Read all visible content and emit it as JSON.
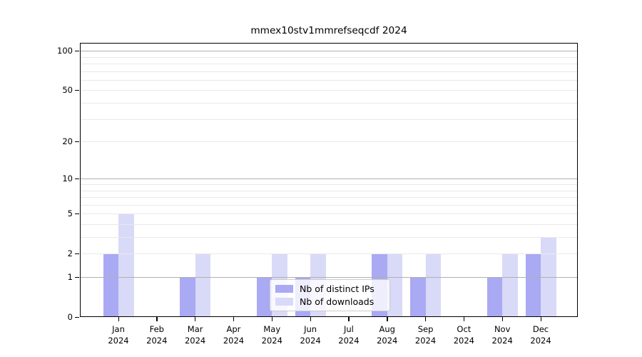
{
  "chart_data": {
    "type": "bar",
    "title": "mmex10stv1mmrefseqcdf 2024",
    "xlabel": "",
    "ylabel": "",
    "scale": "log10(1+y)",
    "grid": "on",
    "legend_position": "lower center",
    "year": "2024",
    "categories": [
      "Jan",
      "Feb",
      "Mar",
      "Apr",
      "May",
      "Jun",
      "Jul",
      "Aug",
      "Sep",
      "Oct",
      "Nov",
      "Dec"
    ],
    "series": [
      {
        "name": "Nb of distinct IPs",
        "color": "#a9a9f4",
        "values": [
          2,
          0,
          1,
          0,
          1,
          1,
          0,
          2,
          1,
          0,
          1,
          2
        ]
      },
      {
        "name": "Nb of downloads",
        "color": "#d9d9f8",
        "values": [
          5,
          0,
          2,
          0,
          2,
          2,
          0,
          2,
          2,
          0,
          2,
          3
        ]
      }
    ],
    "ylim": [
      0,
      115
    ],
    "yticks_labeled": [
      100,
      50,
      20,
      10,
      5,
      2,
      1,
      0
    ],
    "yticks_major_grid": [
      1,
      10,
      100
    ],
    "yticks_minor_grid": [
      2,
      3,
      4,
      5,
      6,
      7,
      8,
      9,
      20,
      30,
      40,
      50,
      60,
      70,
      80,
      90
    ],
    "colors": {
      "axis": "#000000",
      "grid_major": "#b0b0b0",
      "grid_minor": "#e9e9e9",
      "background": "#ffffff"
    }
  }
}
